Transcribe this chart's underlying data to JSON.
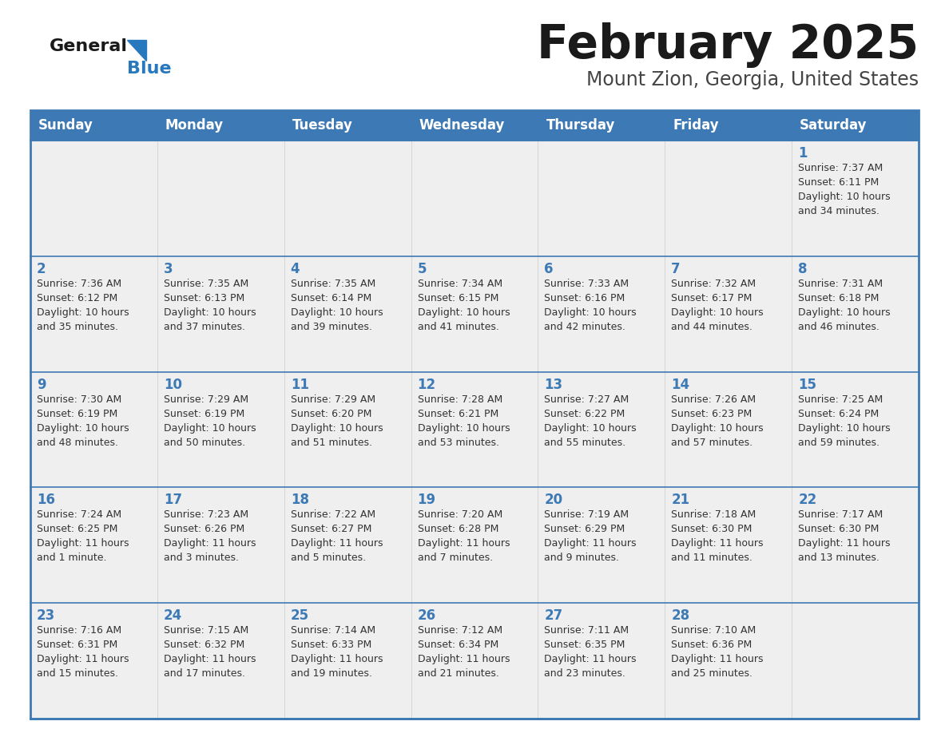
{
  "title": "February 2025",
  "subtitle": "Mount Zion, Georgia, United States",
  "days_of_week": [
    "Sunday",
    "Monday",
    "Tuesday",
    "Wednesday",
    "Thursday",
    "Friday",
    "Saturday"
  ],
  "header_bg_color": "#3D7AB5",
  "header_text_color": "#FFFFFF",
  "cell_bg_color": "#EFEFEF",
  "cell_white_bg": "#FFFFFF",
  "border_color": "#3D7AB5",
  "day_number_color": "#3D7AB5",
  "text_color": "#333333",
  "title_color": "#1A1A1A",
  "subtitle_color": "#444444",
  "logo_general_color": "#1A1A1A",
  "logo_blue_color": "#2878BE",
  "weeks": [
    [
      {
        "day": null,
        "info": null
      },
      {
        "day": null,
        "info": null
      },
      {
        "day": null,
        "info": null
      },
      {
        "day": null,
        "info": null
      },
      {
        "day": null,
        "info": null
      },
      {
        "day": null,
        "info": null
      },
      {
        "day": 1,
        "info": "Sunrise: 7:37 AM\nSunset: 6:11 PM\nDaylight: 10 hours\nand 34 minutes."
      }
    ],
    [
      {
        "day": 2,
        "info": "Sunrise: 7:36 AM\nSunset: 6:12 PM\nDaylight: 10 hours\nand 35 minutes."
      },
      {
        "day": 3,
        "info": "Sunrise: 7:35 AM\nSunset: 6:13 PM\nDaylight: 10 hours\nand 37 minutes."
      },
      {
        "day": 4,
        "info": "Sunrise: 7:35 AM\nSunset: 6:14 PM\nDaylight: 10 hours\nand 39 minutes."
      },
      {
        "day": 5,
        "info": "Sunrise: 7:34 AM\nSunset: 6:15 PM\nDaylight: 10 hours\nand 41 minutes."
      },
      {
        "day": 6,
        "info": "Sunrise: 7:33 AM\nSunset: 6:16 PM\nDaylight: 10 hours\nand 42 minutes."
      },
      {
        "day": 7,
        "info": "Sunrise: 7:32 AM\nSunset: 6:17 PM\nDaylight: 10 hours\nand 44 minutes."
      },
      {
        "day": 8,
        "info": "Sunrise: 7:31 AM\nSunset: 6:18 PM\nDaylight: 10 hours\nand 46 minutes."
      }
    ],
    [
      {
        "day": 9,
        "info": "Sunrise: 7:30 AM\nSunset: 6:19 PM\nDaylight: 10 hours\nand 48 minutes."
      },
      {
        "day": 10,
        "info": "Sunrise: 7:29 AM\nSunset: 6:19 PM\nDaylight: 10 hours\nand 50 minutes."
      },
      {
        "day": 11,
        "info": "Sunrise: 7:29 AM\nSunset: 6:20 PM\nDaylight: 10 hours\nand 51 minutes."
      },
      {
        "day": 12,
        "info": "Sunrise: 7:28 AM\nSunset: 6:21 PM\nDaylight: 10 hours\nand 53 minutes."
      },
      {
        "day": 13,
        "info": "Sunrise: 7:27 AM\nSunset: 6:22 PM\nDaylight: 10 hours\nand 55 minutes."
      },
      {
        "day": 14,
        "info": "Sunrise: 7:26 AM\nSunset: 6:23 PM\nDaylight: 10 hours\nand 57 minutes."
      },
      {
        "day": 15,
        "info": "Sunrise: 7:25 AM\nSunset: 6:24 PM\nDaylight: 10 hours\nand 59 minutes."
      }
    ],
    [
      {
        "day": 16,
        "info": "Sunrise: 7:24 AM\nSunset: 6:25 PM\nDaylight: 11 hours\nand 1 minute."
      },
      {
        "day": 17,
        "info": "Sunrise: 7:23 AM\nSunset: 6:26 PM\nDaylight: 11 hours\nand 3 minutes."
      },
      {
        "day": 18,
        "info": "Sunrise: 7:22 AM\nSunset: 6:27 PM\nDaylight: 11 hours\nand 5 minutes."
      },
      {
        "day": 19,
        "info": "Sunrise: 7:20 AM\nSunset: 6:28 PM\nDaylight: 11 hours\nand 7 minutes."
      },
      {
        "day": 20,
        "info": "Sunrise: 7:19 AM\nSunset: 6:29 PM\nDaylight: 11 hours\nand 9 minutes."
      },
      {
        "day": 21,
        "info": "Sunrise: 7:18 AM\nSunset: 6:30 PM\nDaylight: 11 hours\nand 11 minutes."
      },
      {
        "day": 22,
        "info": "Sunrise: 7:17 AM\nSunset: 6:30 PM\nDaylight: 11 hours\nand 13 minutes."
      }
    ],
    [
      {
        "day": 23,
        "info": "Sunrise: 7:16 AM\nSunset: 6:31 PM\nDaylight: 11 hours\nand 15 minutes."
      },
      {
        "day": 24,
        "info": "Sunrise: 7:15 AM\nSunset: 6:32 PM\nDaylight: 11 hours\nand 17 minutes."
      },
      {
        "day": 25,
        "info": "Sunrise: 7:14 AM\nSunset: 6:33 PM\nDaylight: 11 hours\nand 19 minutes."
      },
      {
        "day": 26,
        "info": "Sunrise: 7:12 AM\nSunset: 6:34 PM\nDaylight: 11 hours\nand 21 minutes."
      },
      {
        "day": 27,
        "info": "Sunrise: 7:11 AM\nSunset: 6:35 PM\nDaylight: 11 hours\nand 23 minutes."
      },
      {
        "day": 28,
        "info": "Sunrise: 7:10 AM\nSunset: 6:36 PM\nDaylight: 11 hours\nand 25 minutes."
      },
      {
        "day": null,
        "info": null
      }
    ]
  ]
}
